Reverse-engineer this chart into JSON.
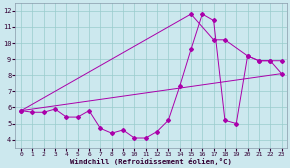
{
  "xlabel": "Windchill (Refroidissement éolien,°C)",
  "bg_color": "#cce8ee",
  "grid_color": "#99cccc",
  "line_color": "#aa00aa",
  "xlim": [
    -0.5,
    23.5
  ],
  "ylim": [
    3.5,
    12.5
  ],
  "xticks": [
    0,
    1,
    2,
    3,
    4,
    5,
    6,
    7,
    8,
    9,
    10,
    11,
    12,
    13,
    14,
    15,
    16,
    17,
    18,
    19,
    20,
    21,
    22,
    23
  ],
  "yticks": [
    4,
    5,
    6,
    7,
    8,
    9,
    10,
    11,
    12
  ],
  "series1_x": [
    0,
    1,
    2,
    3,
    4,
    5,
    6,
    7,
    8,
    9,
    10,
    11,
    12,
    13,
    14,
    15,
    16,
    17,
    18,
    19,
    20,
    21,
    22,
    23
  ],
  "series1_y": [
    5.8,
    5.7,
    5.7,
    5.9,
    5.4,
    5.4,
    5.8,
    4.7,
    4.4,
    4.6,
    4.1,
    4.1,
    4.5,
    5.2,
    7.3,
    9.6,
    11.8,
    11.4,
    5.2,
    5.0,
    9.2,
    8.9,
    8.9,
    8.1
  ],
  "series2_x": [
    0,
    23
  ],
  "series2_y": [
    5.8,
    8.1
  ],
  "series3_x": [
    0,
    15,
    17,
    18,
    20,
    21,
    22,
    23
  ],
  "series3_y": [
    5.8,
    11.8,
    10.2,
    10.2,
    9.2,
    8.9,
    8.9,
    8.9
  ]
}
